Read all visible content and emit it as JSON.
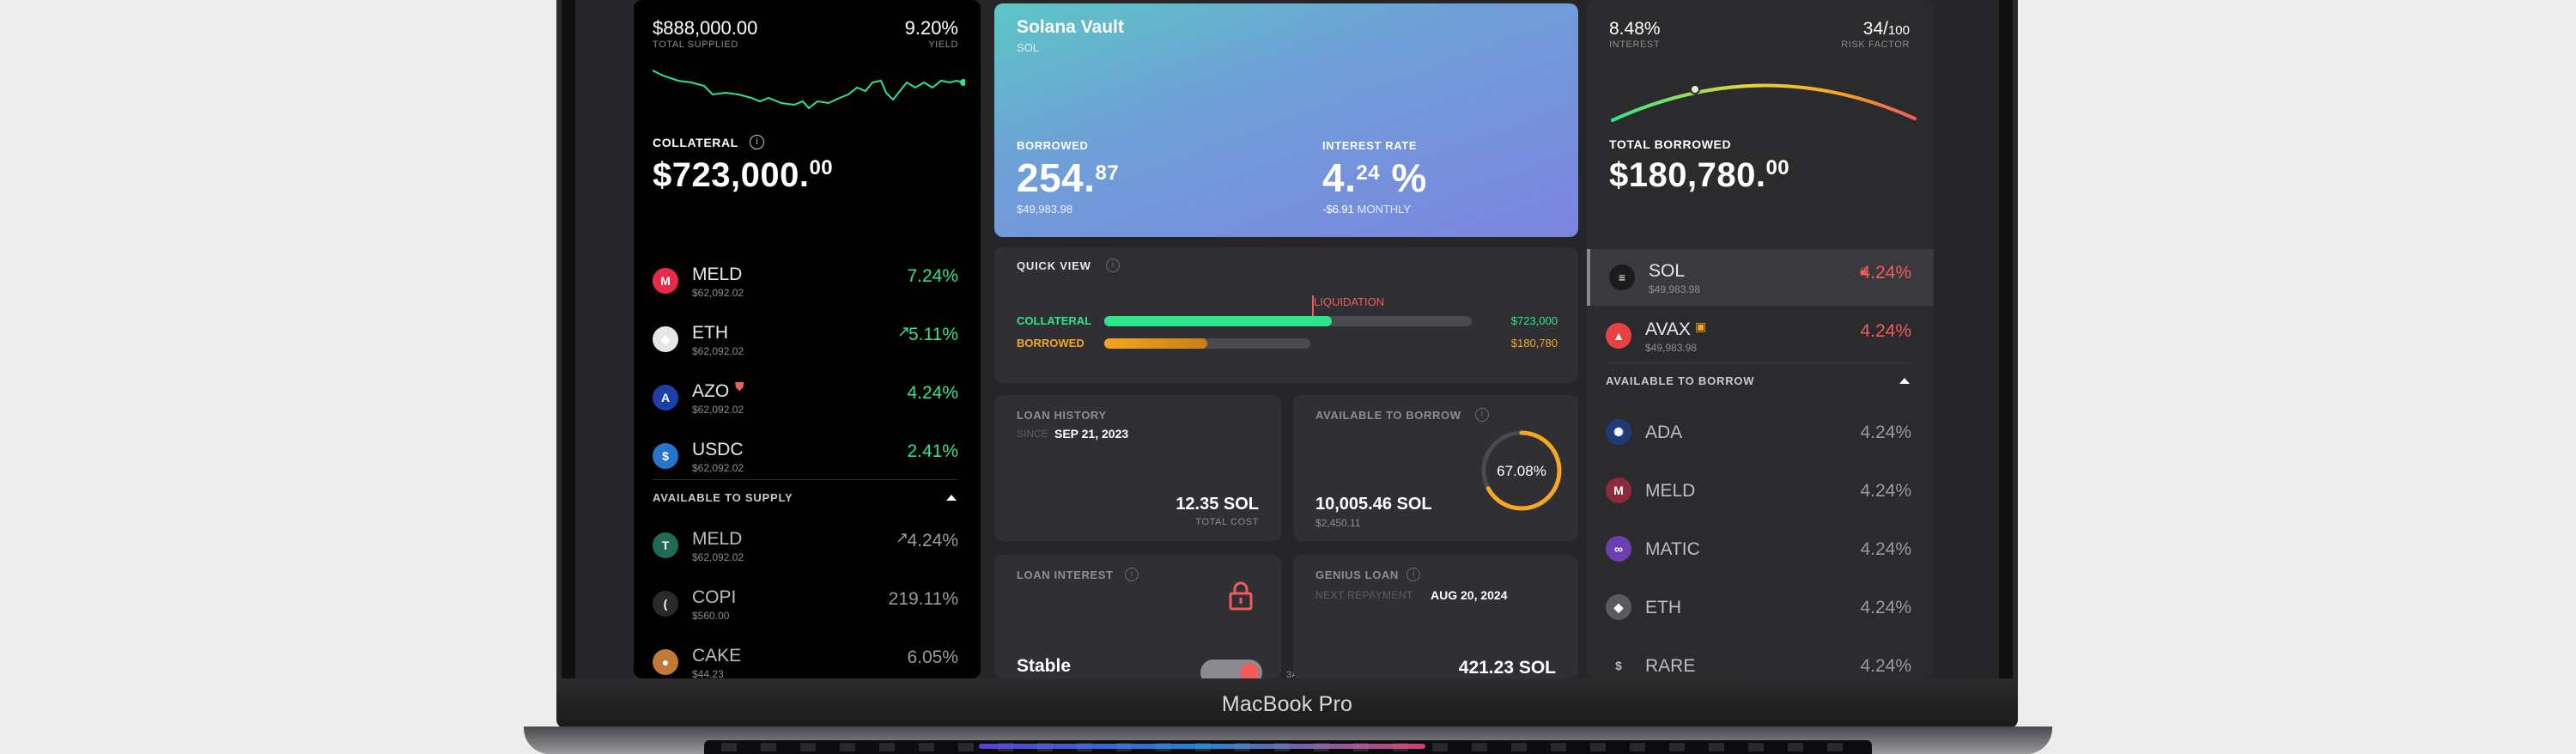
{
  "device": {
    "label": "MacBook Pro"
  },
  "left": {
    "supplied_value": "$888,000.00",
    "supplied_label": "TOTAL SUPPLIED",
    "yield_value": "9.20%",
    "yield_label": "YIELD",
    "collateral_label": "COLLATERAL",
    "collateral_main": "$723,000.",
    "collateral_cents": "00",
    "assets": [
      {
        "name": "MELD",
        "sub": "$62,092.02",
        "pct": "7.24%",
        "color": "#e8294a",
        "glyph": "M"
      },
      {
        "name": "ETH",
        "sub": "$62,092.02",
        "pct": "5.11%",
        "color": "#e6e6e6",
        "glyph": "◆"
      },
      {
        "name": "AZO",
        "sub": "$62,092.02",
        "pct": "4.24%",
        "color": "#1d3fa8",
        "glyph": "A"
      },
      {
        "name": "USDC",
        "sub": "$62,092.02",
        "pct": "2.41%",
        "color": "#2775ca",
        "glyph": "$"
      }
    ],
    "supply_header": "AVAILABLE TO SUPPLY",
    "supply": [
      {
        "name": "MELD",
        "sub": "$62,092.02",
        "pct": "4.24%",
        "color": "#1f6b55",
        "glyph": "T"
      },
      {
        "name": "COPI",
        "sub": "$560.00",
        "pct": "219.11%",
        "color": "#2a2a2a",
        "glyph": "("
      },
      {
        "name": "CAKE",
        "sub": "$44.23",
        "pct": "6.05%",
        "color": "#c07a36",
        "glyph": "●"
      }
    ]
  },
  "vault": {
    "title": "Solana Vault",
    "ticker": "SOL",
    "borrowed_label": "BORROWED",
    "borrowed_main": "254.",
    "borrowed_dec": "87",
    "borrowed_usd": "$49,983.98",
    "rate_label": "INTEREST RATE",
    "rate_main": "4.",
    "rate_dec": "24",
    "rate_pct": "%",
    "rate_change": "-$6.91",
    "rate_period": "MONTHLY"
  },
  "quick": {
    "title": "QUICK VIEW",
    "liquidation": "LIQUIDATION",
    "collateral_label": "COLLATERAL",
    "collateral_value": "$723,000",
    "collateral_fill": 0.62,
    "borrowed_label": "BORROWED",
    "borrowed_value": "$180,780",
    "borrowed_fill": 0.3
  },
  "history": {
    "title": "LOAN HISTORY",
    "since_label": "SINCE",
    "since": "SEP 21, 2023",
    "cost": "12.35 SOL",
    "cost_label": "TOTAL COST"
  },
  "available": {
    "title": "AVAILABLE TO BORROW",
    "amount": "10,005.46 SOL",
    "usd": "$2,450.11",
    "ring": "67.08%",
    "ring_fraction": 0.6708
  },
  "interest": {
    "title": "LOAN INTEREST",
    "mode": "Stable",
    "edge": "3A"
  },
  "genius": {
    "title": "GENIUS LOAN",
    "next_label": "NEXT REPAYMENT",
    "next_date": "AUG 20, 2024",
    "amount": "421.23 SOL"
  },
  "right": {
    "interest_value": "8.48%",
    "interest_label": "INTEREST",
    "risk_value": "34/",
    "risk_max": "100",
    "risk_label": "RISK FACTOR",
    "borrowed_label": "TOTAL BORROWED",
    "borrowed_main": "$180,780.",
    "borrowed_cents": "00",
    "borrows": [
      {
        "name": "SOL",
        "sub": "$49,983.98",
        "pct": "4.24%",
        "color": "#1b1b1b",
        "glyph": "≡"
      },
      {
        "name": "AVAX",
        "sub": "$49,983.98",
        "pct": "4.24%",
        "color": "#e84142",
        "glyph": "▲"
      }
    ],
    "borrow_header": "AVAILABLE TO BORROW",
    "available": [
      {
        "name": "ADA",
        "pct": "4.24%",
        "color": "#1f3a7a",
        "glyph": "✺"
      },
      {
        "name": "MELD",
        "pct": "4.24%",
        "color": "#8a2a3c",
        "glyph": "M"
      },
      {
        "name": "MATIC",
        "pct": "4.24%",
        "color": "#6b3fb0",
        "glyph": "∞"
      },
      {
        "name": "ETH",
        "pct": "4.24%",
        "color": "#5a5a5e",
        "glyph": "◆"
      },
      {
        "name": "RARE",
        "pct": "4.24%",
        "color": "transparent",
        "glyph": "$"
      }
    ]
  },
  "colors": {
    "green": "#2ee58a",
    "red": "#f25b5b",
    "orange": "#f5a623",
    "vault_from": "#5bc0c8",
    "vault_to": "#7b86e0"
  }
}
